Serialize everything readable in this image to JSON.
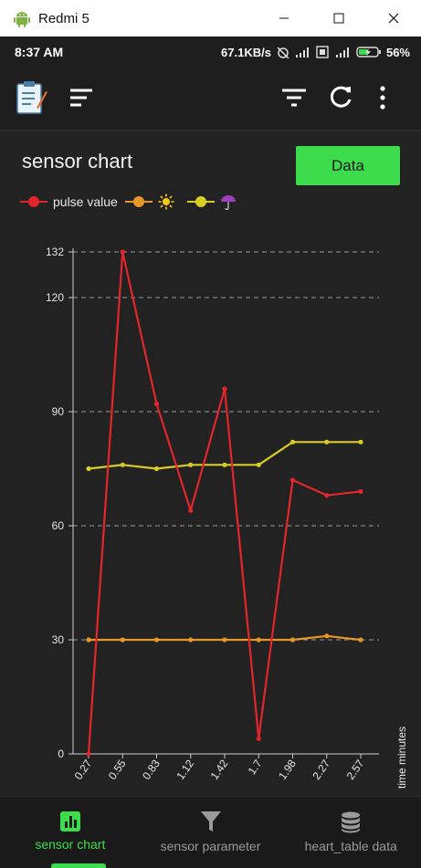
{
  "window": {
    "title": "Redmi 5"
  },
  "status_bar": {
    "time": "8:37 AM",
    "net_speed": "67.1KB/s",
    "battery": "56%"
  },
  "page": {
    "heading": "sensor chart",
    "data_button": "Data"
  },
  "legend": [
    {
      "label": "pulse value",
      "color": "#e3262b",
      "icon": ""
    },
    {
      "label": "",
      "color": "#e8972b",
      "icon": "sun-icon"
    },
    {
      "label": "",
      "color": "#d9cd25",
      "icon": "umbrella-icon"
    }
  ],
  "chart_data": {
    "type": "line",
    "x": [
      "0.27",
      "0.55",
      "0.83",
      "1.12",
      "1.42",
      "1.7",
      "1.98",
      "2.27",
      "2.57"
    ],
    "xlabel": "time minutes",
    "ylabel": "",
    "yticks": [
      0,
      30,
      60,
      90,
      120,
      132
    ],
    "ylim": [
      0,
      132
    ],
    "grid": true,
    "series": [
      {
        "name": "pulse value",
        "color": "#e3262b",
        "values": [
          0,
          132,
          92,
          64,
          96,
          4,
          72,
          68,
          69
        ]
      },
      {
        "name": "",
        "color": "#e8972b",
        "values": [
          30,
          30,
          30,
          30,
          30,
          30,
          30,
          31,
          30
        ]
      },
      {
        "name": "",
        "color": "#d9cd25",
        "values": [
          75,
          76,
          75,
          76,
          76,
          76,
          82,
          82,
          82
        ]
      }
    ]
  },
  "bottom_nav": [
    {
      "label": "sensor chart",
      "icon": "bar-chart-icon",
      "active": true
    },
    {
      "label": "sensor parameter",
      "icon": "filter-funnel-icon",
      "active": false
    },
    {
      "label": "heart_table data",
      "icon": "database-icon",
      "active": false
    }
  ]
}
